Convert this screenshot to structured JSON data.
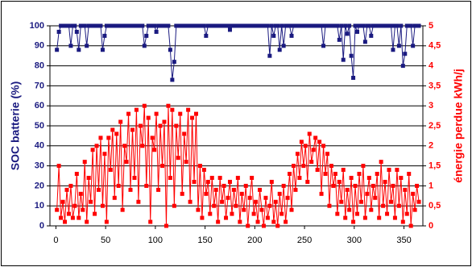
{
  "chart_data": {
    "type": "line",
    "x": [
      1,
      3,
      5,
      7,
      9,
      11,
      13,
      15,
      17,
      19,
      21,
      23,
      25,
      27,
      29,
      31,
      33,
      35,
      37,
      39,
      41,
      43,
      45,
      47,
      49,
      51,
      53,
      55,
      57,
      59,
      61,
      63,
      65,
      67,
      69,
      71,
      73,
      75,
      77,
      79,
      81,
      83,
      85,
      87,
      89,
      91,
      93,
      95,
      97,
      99,
      101,
      103,
      105,
      107,
      109,
      111,
      113,
      115,
      117,
      119,
      121,
      123,
      125,
      127,
      129,
      131,
      133,
      135,
      137,
      139,
      141,
      143,
      145,
      147,
      149,
      151,
      153,
      155,
      157,
      159,
      161,
      163,
      165,
      167,
      169,
      171,
      173,
      175,
      177,
      179,
      181,
      183,
      185,
      187,
      189,
      191,
      193,
      195,
      197,
      199,
      201,
      203,
      205,
      207,
      209,
      211,
      213,
      215,
      217,
      219,
      221,
      223,
      225,
      227,
      229,
      231,
      233,
      235,
      237,
      239,
      241,
      243,
      245,
      247,
      249,
      251,
      253,
      255,
      257,
      259,
      261,
      263,
      265,
      267,
      269,
      271,
      273,
      275,
      277,
      279,
      281,
      283,
      285,
      287,
      289,
      291,
      293,
      295,
      297,
      299,
      301,
      303,
      305,
      307,
      309,
      311,
      313,
      315,
      317,
      319,
      321,
      323,
      325,
      327,
      329,
      331,
      333,
      335,
      337,
      339,
      341,
      343,
      345,
      347,
      349,
      351,
      353,
      355,
      357,
      359,
      361,
      363,
      365
    ],
    "series": [
      {
        "name": "SOC batterie (%)",
        "color": "#1a1a80",
        "values": [
          88,
          97,
          100,
          100,
          100,
          100,
          100,
          90,
          100,
          100,
          97,
          88,
          100,
          100,
          100,
          90,
          100,
          100,
          100,
          100,
          100,
          100,
          100,
          88,
          95,
          100,
          100,
          100,
          100,
          100,
          100,
          100,
          100,
          100,
          100,
          100,
          100,
          100,
          100,
          100,
          100,
          100,
          100,
          100,
          90,
          95,
          100,
          100,
          100,
          100,
          97,
          100,
          100,
          100,
          100,
          100,
          100,
          88,
          73,
          82,
          100,
          100,
          100,
          100,
          100,
          100,
          100,
          100,
          100,
          100,
          100,
          100,
          100,
          100,
          100,
          95,
          100,
          100,
          100,
          100,
          100,
          100,
          100,
          100,
          100,
          100,
          100,
          98,
          100,
          100,
          100,
          100,
          100,
          100,
          100,
          100,
          100,
          100,
          100,
          100,
          100,
          100,
          100,
          100,
          100,
          100,
          100,
          85,
          100,
          95,
          100,
          100,
          88,
          100,
          90,
          100,
          100,
          100,
          95,
          100,
          100,
          100,
          100,
          100,
          100,
          100,
          100,
          100,
          100,
          100,
          100,
          100,
          100,
          100,
          90,
          100,
          100,
          100,
          100,
          100,
          100,
          100,
          93,
          100,
          83,
          100,
          96,
          100,
          85,
          74,
          100,
          97,
          100,
          100,
          100,
          92,
          100,
          100,
          95,
          100,
          100,
          100,
          100,
          100,
          100,
          100,
          100,
          100,
          100,
          88,
          100,
          100,
          90,
          100,
          80,
          86,
          100,
          100,
          100,
          90,
          100,
          100,
          100
        ]
      },
      {
        "name": "énergie perdue kWh/j",
        "color": "#ff0000",
        "axis": "y2",
        "values": [
          0.4,
          1.5,
          0.2,
          0.6,
          0.1,
          0.9,
          0.3,
          1.0,
          0.2,
          0.5,
          1.3,
          0.2,
          0.8,
          0.4,
          1.6,
          0.1,
          1.2,
          0.6,
          1.9,
          0.3,
          2.0,
          0.9,
          2.2,
          0.5,
          1.8,
          0.1,
          2.2,
          1.4,
          2.4,
          0.7,
          2.3,
          1.0,
          2.6,
          0.4,
          2.0,
          1.6,
          2.8,
          0.9,
          2.4,
          1.2,
          2.9,
          0.6,
          2.5,
          2.0,
          3.0,
          1.0,
          2.7,
          0.1,
          2.2,
          1.9,
          2.8,
          0.9,
          2.5,
          1.5,
          2.6,
          0.0,
          3.0,
          1.2,
          2.9,
          0.5,
          2.5,
          1.7,
          2.8,
          0.8,
          2.3,
          1.6,
          2.9,
          0.6,
          2.7,
          1.1,
          2.8,
          0.4,
          1.5,
          0.2,
          1.4,
          0.8,
          1.1,
          0.3,
          1.2,
          0.5,
          0.9,
          0.1,
          1.2,
          0.6,
          1.0,
          0.2,
          0.7,
          1.1,
          0.3,
          0.9,
          0.5,
          1.2,
          0.1,
          0.8,
          0.4,
          1.0,
          0.0,
          0.7,
          1.2,
          0.3,
          0.6,
          0.1,
          0.9,
          0.4,
          0.0,
          0.7,
          0.2,
          0.5,
          1.1,
          0.1,
          0.6,
          0.0,
          0.8,
          0.3,
          1.0,
          0.1,
          0.7,
          1.3,
          0.4,
          1.5,
          0.9,
          1.8,
          1.2,
          2.1,
          1.5,
          2.0,
          1.1,
          2.3,
          1.6,
          1.9,
          2.2,
          1.4,
          2.1,
          0.8,
          2.0,
          1.3,
          1.8,
          0.5,
          1.5,
          1.0,
          1.3,
          0.3,
          1.1,
          0.6,
          1.4,
          0.2,
          0.9,
          0.4,
          1.2,
          0.1,
          1.0,
          0.3,
          1.3,
          0.6,
          1.5,
          0.2,
          0.8,
          1.2,
          0.4,
          1.0,
          0.7,
          1.3,
          0.2,
          1.6,
          0.5,
          1.1,
          0.3,
          1.4,
          0.6,
          1.0,
          0.2,
          1.4,
          0.5,
          1.2,
          0.1,
          0.9,
          0.3,
          1.3,
          0.0,
          0.8,
          0.4,
          1.0,
          0.6
        ]
      }
    ],
    "xlim": [
      -6,
      369
    ],
    "xticks": [
      0,
      50,
      100,
      150,
      200,
      250,
      300,
      350
    ],
    "ylim": [
      0,
      100
    ],
    "yticks": [
      0,
      10,
      20,
      30,
      40,
      50,
      60,
      70,
      80,
      90,
      100
    ],
    "y2lim": [
      0,
      5
    ],
    "y2ticks": [
      0,
      {
        "value": 0.5,
        "label": "0,5"
      },
      1,
      {
        "value": 1.5,
        "label": "1,5"
      },
      2,
      {
        "value": 2.5,
        "label": "2,5"
      },
      3,
      {
        "value": 3.5,
        "label": "3,5"
      },
      4,
      {
        "value": 4.5,
        "label": "4,5"
      },
      5
    ],
    "grid": true
  }
}
